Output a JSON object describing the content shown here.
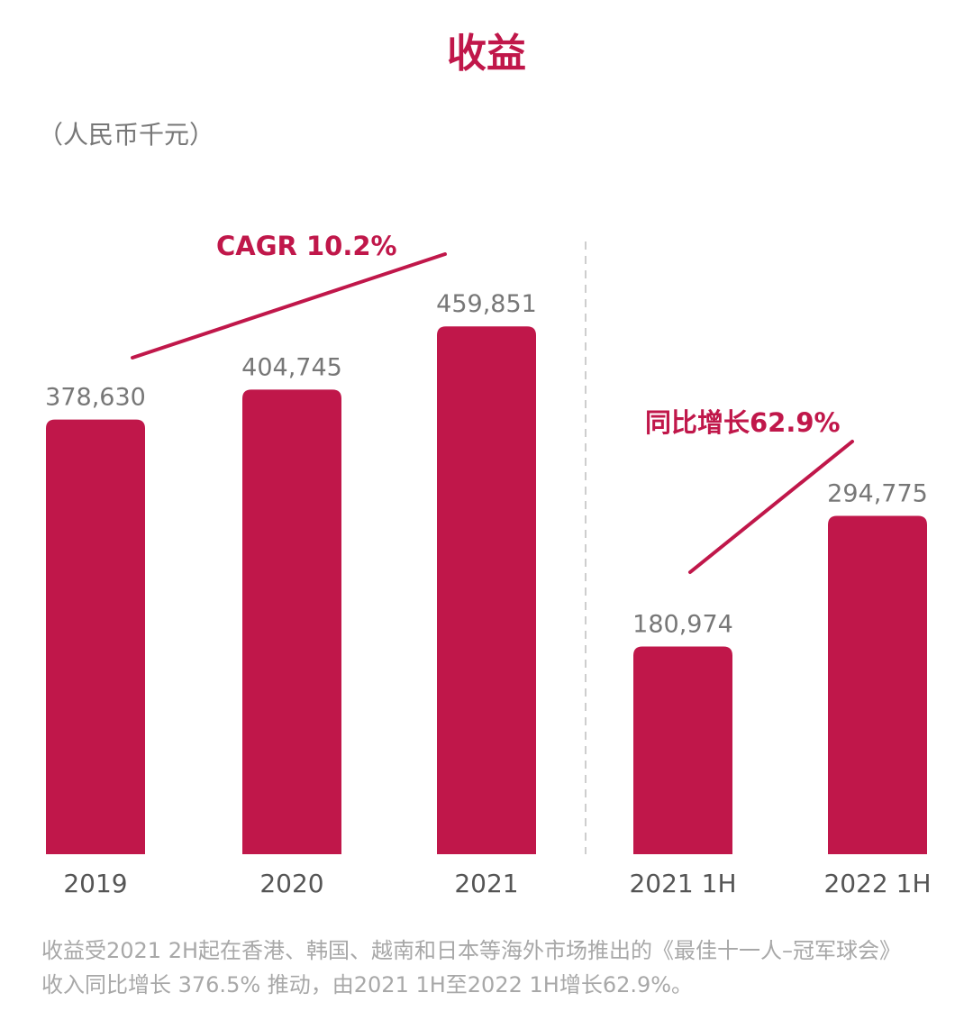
{
  "title": "收益",
  "unit": "（人民币千元）",
  "colors": {
    "accent": "#c0174a",
    "bar": "#c0174a",
    "value_label": "#777777",
    "axis_label": "#555555",
    "divider": "#bdbdbd",
    "footnote": "#a8a8a8"
  },
  "chart_data": {
    "type": "bar",
    "categories": [
      "2019",
      "2020",
      "2021",
      "2021 1H",
      "2022 1H"
    ],
    "values": [
      378630,
      404745,
      459851,
      180974,
      294775
    ],
    "value_labels": [
      "378,630",
      "404,745",
      "459,851",
      "180,974",
      "294,775"
    ],
    "ylim": [
      0,
      460000
    ],
    "grid": false,
    "annotations": [
      {
        "text": "CAGR 10.2%",
        "from_category": "2019",
        "to_category": "2021"
      },
      {
        "text": "同比增长62.9%",
        "from_category": "2021 1H",
        "to_category": "2022 1H"
      }
    ],
    "divider": "dashed line between 2021 and 2021 1H"
  },
  "footnote": {
    "line1": "收益受2021 2H起在香港、韩国、越南和日本等海外市场推出的《最佳十一人–冠军球会》",
    "line2": "收入同比增长 376.5% 推动，由2021 1H至2022 1H增长62.9%。"
  }
}
